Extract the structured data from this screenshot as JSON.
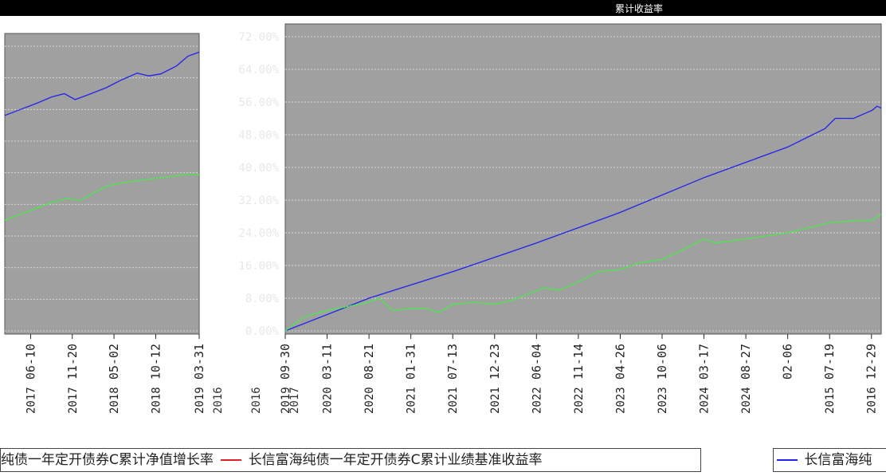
{
  "header": {
    "title": "累计收益率"
  },
  "colors": {
    "background": "#a0a0a0",
    "nav_line": "#2222ee",
    "benchmark_line": "#44ee44",
    "legend_red": "#dd2222"
  },
  "chart_data": [
    {
      "type": "line",
      "panel": "left",
      "x_ticks": [
        {
          "date": "2017-06-10",
          "year": "2017"
        },
        {
          "date": "2017-11-20",
          "year": "2017"
        },
        {
          "date": "2018-05-02",
          "year": "2018"
        },
        {
          "date": "2018-10-12",
          "year": "2018"
        },
        {
          "date": "2019-03-31",
          "year": "2019"
        }
      ],
      "year_row_extra": [
        "2016",
        "2016",
        "2017"
      ],
      "series": [
        {
          "name": "长信富海纯债一年定开债券C累计净值增长率",
          "color": "#2222ee",
          "points": [
            [
              "2017-03-01",
              54.5
            ],
            [
              "2017-05-01",
              56.0
            ],
            [
              "2017-07-01",
              57.5
            ],
            [
              "2017-09-01",
              59.2
            ],
            [
              "2017-10-20",
              60.0
            ],
            [
              "2017-12-01",
              58.5
            ],
            [
              "2018-02-01",
              60.0
            ],
            [
              "2018-04-01",
              61.5
            ],
            [
              "2018-06-01",
              63.5
            ],
            [
              "2018-08-01",
              65.2
            ],
            [
              "2018-09-15",
              64.5
            ],
            [
              "2018-11-01",
              65.0
            ],
            [
              "2019-01-01",
              67.0
            ],
            [
              "2019-02-15",
              69.5
            ],
            [
              "2019-03-31",
              70.5
            ]
          ]
        },
        {
          "name": "长信富海纯债一年定开债券C累计业绩基准收益率",
          "color": "#44ee44",
          "points": [
            [
              "2017-03-01",
              28.0
            ],
            [
              "2017-05-01",
              29.5
            ],
            [
              "2017-07-01",
              31.0
            ],
            [
              "2017-09-01",
              32.5
            ],
            [
              "2017-11-01",
              33.5
            ],
            [
              "2017-12-20",
              33.0
            ],
            [
              "2018-02-01",
              34.5
            ],
            [
              "2018-04-01",
              36.5
            ],
            [
              "2018-06-01",
              37.5
            ],
            [
              "2018-08-01",
              38.0
            ],
            [
              "2018-10-01",
              38.5
            ],
            [
              "2018-12-01",
              39.0
            ],
            [
              "2019-02-01",
              39.5
            ],
            [
              "2019-03-31",
              39.5
            ]
          ]
        }
      ]
    },
    {
      "type": "line",
      "panel": "main",
      "ylim": [
        0,
        72
      ],
      "y_ticks": [
        "72.00%",
        "64.00%",
        "56.00%",
        "48.00%",
        "40.00%",
        "32.00%",
        "24.00%",
        "16.00%",
        "8.00%",
        "0.00%"
      ],
      "x_ticks": [
        {
          "date": "2019-09-30",
          "year": "2019"
        },
        {
          "date": "2020-03-11",
          "year": "2020"
        },
        {
          "date": "2020-08-21",
          "year": "2020"
        },
        {
          "date": "2021-01-31",
          "year": "2021"
        },
        {
          "date": "2021-07-13",
          "year": "2021"
        },
        {
          "date": "2021-12-23",
          "year": "2021"
        },
        {
          "date": "2022-06-04",
          "year": "2022"
        },
        {
          "date": "2022-11-14",
          "year": "2022"
        },
        {
          "date": "2023-04-26",
          "year": "2023"
        },
        {
          "date": "2023-10-06",
          "year": "2023"
        },
        {
          "date": "2024-03-17",
          "year": "2024"
        },
        {
          "date": "2024-08-27",
          "year": "2024"
        },
        {
          "date": "2025-02-06",
          "year": ""
        },
        {
          "date": "2025-07-19",
          "year": "2015"
        },
        {
          "date": "2025-12-29",
          "year": "2016"
        }
      ],
      "series": [
        {
          "name": "长信富海纯债一年定开债券C累计净值增长率",
          "color": "#2222ee",
          "points": [
            [
              "2019-09-30",
              0.0
            ],
            [
              "2020-08-21",
              8.0
            ],
            [
              "2021-07-13",
              14.5
            ],
            [
              "2022-06-04",
              21.5
            ],
            [
              "2023-04-26",
              29.0
            ],
            [
              "2024-03-17",
              37.5
            ],
            [
              "2025-02-06",
              45.0
            ],
            [
              "2025-07-01",
              49.5
            ],
            [
              "2025-08-10",
              52.0
            ],
            [
              "2025-10-20",
              52.0
            ],
            [
              "2026-01-01",
              54.0
            ],
            [
              "2026-01-20",
              55.0
            ],
            [
              "2026-02-05",
              54.5
            ]
          ]
        },
        {
          "name": "长信富海纯债一年定开债券C累计业绩基准收益率",
          "color": "#44ee44",
          "points": [
            [
              "2019-09-30",
              0.0
            ],
            [
              "2019-12-15",
              3.5
            ],
            [
              "2020-03-11",
              5.0
            ],
            [
              "2020-06-01",
              6.0
            ],
            [
              "2020-08-21",
              7.0
            ],
            [
              "2020-10-01",
              8.0
            ],
            [
              "2020-11-20",
              5.0
            ],
            [
              "2021-01-31",
              5.5
            ],
            [
              "2021-04-01",
              5.5
            ],
            [
              "2021-05-20",
              4.5
            ],
            [
              "2021-07-13",
              6.5
            ],
            [
              "2021-10-01",
              7.0
            ],
            [
              "2021-12-23",
              6.5
            ],
            [
              "2022-03-01",
              7.5
            ],
            [
              "2022-05-01",
              9.0
            ],
            [
              "2022-07-01",
              10.5
            ],
            [
              "2022-09-01",
              10.0
            ],
            [
              "2022-11-14",
              12.0
            ],
            [
              "2023-02-01",
              14.5
            ],
            [
              "2023-04-26",
              15.0
            ],
            [
              "2023-07-01",
              16.5
            ],
            [
              "2023-10-06",
              17.5
            ],
            [
              "2023-12-15",
              19.5
            ],
            [
              "2024-03-17",
              22.5
            ],
            [
              "2024-05-01",
              21.5
            ],
            [
              "2024-08-27",
              22.5
            ],
            [
              "2025-02-06",
              24.0
            ],
            [
              "2025-07-19",
              26.5
            ],
            [
              "2025-11-01",
              27.0
            ],
            [
              "2025-12-29",
              27.0
            ],
            [
              "2026-02-05",
              28.5
            ]
          ]
        }
      ]
    }
  ],
  "legend_left": {
    "item1": "纯债一年定开债券C累计净值增长率",
    "item2": "长信富海纯债一年定开债券C累计业绩基准收益率"
  },
  "legend_right": {
    "item1": "长信富海纯"
  }
}
